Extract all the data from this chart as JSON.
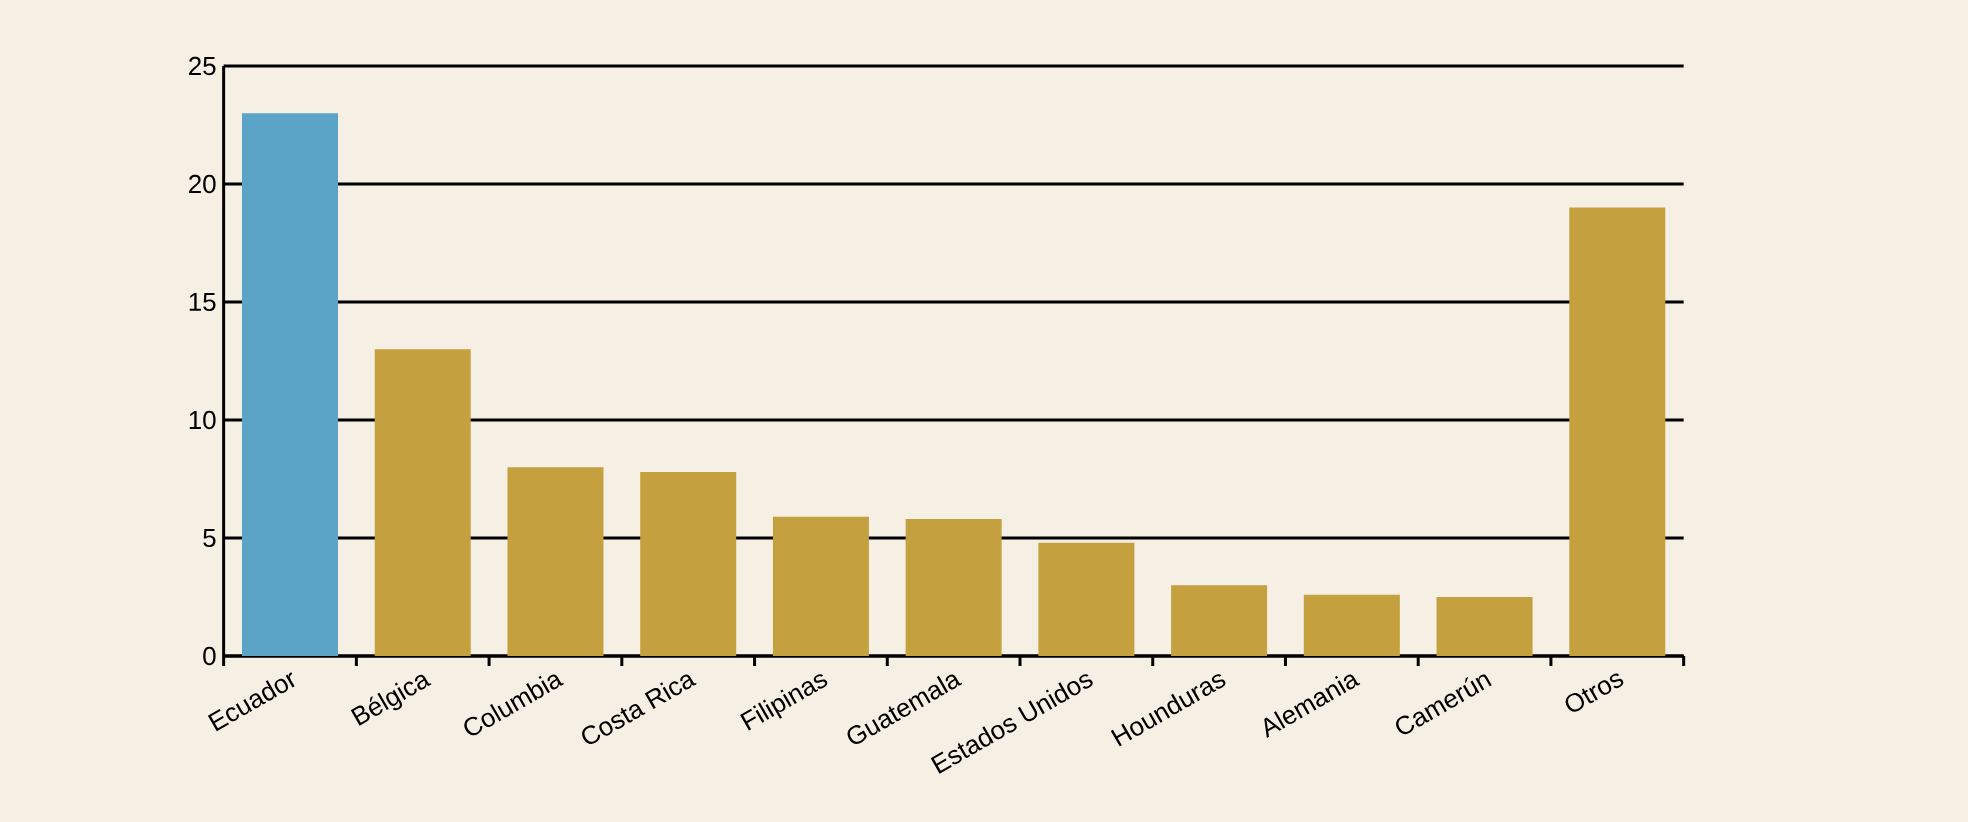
{
  "chart_data": {
    "type": "bar",
    "categories": [
      "Ecuador",
      "Bélgica",
      "Columbia",
      "Costa Rica",
      "Filipinas",
      "Guatemala",
      "Estados Unidos",
      "Hounduras",
      "Alemania",
      "Camerún",
      "Otros"
    ],
    "values": [
      23,
      13,
      8,
      7.8,
      5.9,
      5.8,
      4.8,
      3,
      2.6,
      2.5,
      19
    ],
    "colors": [
      "#5ba4c7",
      "#c4a03f",
      "#c4a03f",
      "#c4a03f",
      "#c4a03f",
      "#c4a03f",
      "#c4a03f",
      "#c4a03f",
      "#c4a03f",
      "#c4a03f",
      "#c4a03f"
    ],
    "ylim": [
      0,
      25
    ],
    "yticks": [
      0,
      5,
      10,
      15,
      20,
      25
    ],
    "grid": "y"
  }
}
